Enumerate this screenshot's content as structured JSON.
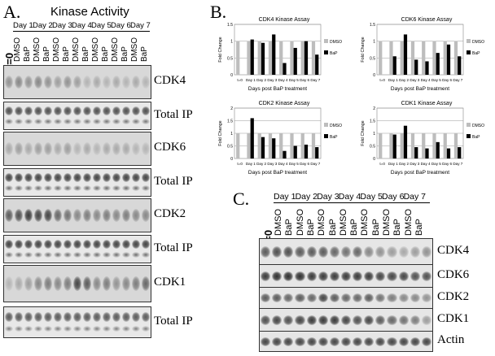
{
  "panel_a": {
    "letter": "A.",
    "title": "Kinase Activity",
    "t0_label": "t=0",
    "days": [
      "Day 1",
      "Day 2",
      "Day 3",
      "Day 4",
      "Day 5",
      "Day 6",
      "Day 7"
    ],
    "lanes": [
      "DMSO",
      "BaP",
      "DMSO",
      "BaP",
      "DMSO",
      "BaP",
      "DMSO",
      "BaP",
      "DMSO",
      "BaP",
      "DMSO",
      "BaP",
      "DMSO",
      "BaP"
    ],
    "blots": [
      {
        "label": "CDK4",
        "style": "kinase",
        "intensity": [
          0.5,
          0.55,
          0.5,
          0.55,
          0.5,
          0.45,
          0.5,
          0.45,
          0.35,
          0.4,
          0.35,
          0.4,
          0.35,
          0.4,
          0.35
        ]
      },
      {
        "label": "Total IP",
        "style": "total",
        "intensity": [
          0.8,
          0.8,
          0.8,
          0.8,
          0.8,
          0.8,
          0.8,
          0.8,
          0.8,
          0.8,
          0.8,
          0.8,
          0.8,
          0.8,
          0.8
        ]
      },
      {
        "label": "CDK6",
        "style": "kinase",
        "intensity": [
          0.4,
          0.45,
          0.4,
          0.45,
          0.45,
          0.4,
          0.45,
          0.35,
          0.4,
          0.35,
          0.4,
          0.4,
          0.4,
          0.35,
          0.35
        ]
      },
      {
        "label": "Total IP",
        "style": "total",
        "intensity": [
          0.85,
          0.85,
          0.85,
          0.85,
          0.85,
          0.85,
          0.85,
          0.85,
          0.85,
          0.85,
          0.85,
          0.85,
          0.85,
          0.85,
          0.85
        ]
      },
      {
        "label": "CDK2",
        "style": "kinase",
        "intensity": [
          0.75,
          0.8,
          0.9,
          0.85,
          0.85,
          0.7,
          0.65,
          0.55,
          0.6,
          0.55,
          0.6,
          0.55,
          0.6,
          0.55,
          0.55
        ]
      },
      {
        "label": "Total IP",
        "style": "total",
        "intensity": [
          0.85,
          0.85,
          0.85,
          0.85,
          0.85,
          0.85,
          0.85,
          0.85,
          0.85,
          0.85,
          0.85,
          0.85,
          0.85,
          0.85,
          0.85
        ]
      },
      {
        "label": "CDK1",
        "style": "kinase",
        "intensity": [
          0.35,
          0.4,
          0.45,
          0.55,
          0.6,
          0.55,
          0.6,
          0.85,
          0.75,
          0.55,
          0.6,
          0.5,
          0.55,
          0.6,
          0.7
        ]
      },
      {
        "label": "Total IP",
        "style": "total",
        "intensity": [
          0.75,
          0.75,
          0.75,
          0.75,
          0.75,
          0.75,
          0.75,
          0.75,
          0.75,
          0.75,
          0.75,
          0.75,
          0.75,
          0.75,
          0.75
        ]
      }
    ]
  },
  "panel_b": {
    "letter": "B."
  },
  "chart_data": [
    {
      "type": "bar",
      "title": "CDK4 Kinase Assay",
      "xlabel": "Days post BaP treatment",
      "ylabel": "Fold Change",
      "ylim": [
        0,
        1.5
      ],
      "yticks": [
        "0",
        "0.5",
        "1",
        "1.5"
      ],
      "categories": [
        "t=0",
        "Day 1",
        "Day 2",
        "Day 3",
        "Day 4",
        "Day 5",
        "Day 6",
        "Day 7"
      ],
      "series": [
        {
          "name": "DMSO",
          "color": "#bdbdbd",
          "values": [
            1,
            1,
            1,
            1,
            1,
            1,
            1,
            1
          ]
        },
        {
          "name": "BaP",
          "color": "#000000",
          "values": [
            null,
            1.05,
            0.95,
            1.2,
            0.35,
            0.8,
            1.0,
            0.6
          ]
        }
      ],
      "legend_position": "right"
    },
    {
      "type": "bar",
      "title": "CDK6 Kinase Assay",
      "xlabel": "Days post BaP treatment",
      "ylabel": "Fold Change",
      "ylim": [
        0,
        1.5
      ],
      "yticks": [
        "0",
        "0.5",
        "1",
        "1.5"
      ],
      "categories": [
        "t=0",
        "Day 1",
        "Day 2",
        "Day 3",
        "Day 4",
        "Day 5",
        "Day 6",
        "Day 7"
      ],
      "series": [
        {
          "name": "DMSO",
          "color": "#bdbdbd",
          "values": [
            1,
            1,
            1,
            1,
            1,
            1,
            1,
            1
          ]
        },
        {
          "name": "BaP",
          "color": "#000000",
          "values": [
            null,
            0.55,
            1.2,
            0.45,
            0.4,
            0.65,
            0.9,
            0.55
          ]
        }
      ],
      "legend_position": "right"
    },
    {
      "type": "bar",
      "title": "CDK2 Kinase Assay",
      "xlabel": "Days post BaP treatment",
      "ylabel": "Fold Change",
      "ylim": [
        0,
        2
      ],
      "yticks": [
        "0",
        "0.5",
        "1",
        "1.5",
        "2"
      ],
      "categories": [
        "t=0",
        "Day 1",
        "Day 2",
        "Day 3",
        "Day 4",
        "Day 5",
        "Day 6",
        "Day 7"
      ],
      "series": [
        {
          "name": "DMSO",
          "color": "#bdbdbd",
          "values": [
            1,
            1,
            1,
            1,
            1,
            1,
            1,
            1
          ]
        },
        {
          "name": "BaP",
          "color": "#000000",
          "values": [
            null,
            1.6,
            0.85,
            0.8,
            0.3,
            0.5,
            0.55,
            0.45
          ]
        }
      ],
      "legend_position": "right"
    },
    {
      "type": "bar",
      "title": "CDK1 Kinase Assay",
      "xlabel": "Days post BaP treatment",
      "ylabel": "Fold Change",
      "ylim": [
        0,
        2
      ],
      "yticks": [
        "0",
        "0.5",
        "1",
        "1.5",
        "2"
      ],
      "categories": [
        "t=0",
        "Day 1",
        "Day 2",
        "Day 3",
        "Day 4",
        "Day 5",
        "Day 6",
        "Day 7"
      ],
      "series": [
        {
          "name": "DMSO",
          "color": "#bdbdbd",
          "values": [
            1,
            1,
            1,
            1,
            1,
            1,
            1,
            1
          ]
        },
        {
          "name": "BaP",
          "color": "#000000",
          "values": [
            null,
            0.95,
            1.3,
            0.45,
            0.4,
            0.65,
            0.4,
            0.45
          ]
        }
      ],
      "legend_position": "right"
    }
  ],
  "panel_c": {
    "letter": "C.",
    "t0_label": "t=0",
    "days": [
      "Day 1",
      "Day 2",
      "Day 3",
      "Day 4",
      "Day 5",
      "Day 6",
      "Day 7"
    ],
    "lanes": [
      "DMSO",
      "BaP",
      "DMSO",
      "BaP",
      "DMSO",
      "BaP",
      "DMSO",
      "BaP",
      "DMSO",
      "BaP",
      "DMSO",
      "BaP",
      "DMSO",
      "BaP"
    ],
    "blots": [
      {
        "label": "CDK4",
        "intensity": [
          0.75,
          0.8,
          0.8,
          0.75,
          0.75,
          0.75,
          0.7,
          0.65,
          0.7,
          0.55,
          0.5,
          0.45,
          0.4,
          0.45,
          0.5
        ]
      },
      {
        "label": "CDK6",
        "intensity": [
          0.9,
          0.95,
          0.95,
          0.95,
          0.9,
          0.9,
          0.9,
          0.9,
          0.9,
          0.9,
          0.85,
          0.85,
          0.85,
          0.8,
          0.8
        ]
      },
      {
        "label": "CDK2",
        "intensity": [
          0.75,
          0.75,
          0.7,
          0.75,
          0.7,
          0.85,
          0.75,
          0.7,
          0.7,
          0.75,
          0.65,
          0.6,
          0.55,
          0.55,
          0.5
        ]
      },
      {
        "label": "CDK1",
        "intensity": [
          0.8,
          0.85,
          0.8,
          0.85,
          0.9,
          0.9,
          0.9,
          0.85,
          0.8,
          0.85,
          0.75,
          0.7,
          0.65,
          0.6,
          0.45
        ]
      },
      {
        "label": "Actin",
        "intensity": [
          0.85,
          0.85,
          0.85,
          0.85,
          0.85,
          0.85,
          0.85,
          0.85,
          0.85,
          0.85,
          0.85,
          0.85,
          0.85,
          0.85,
          0.85
        ]
      }
    ]
  }
}
